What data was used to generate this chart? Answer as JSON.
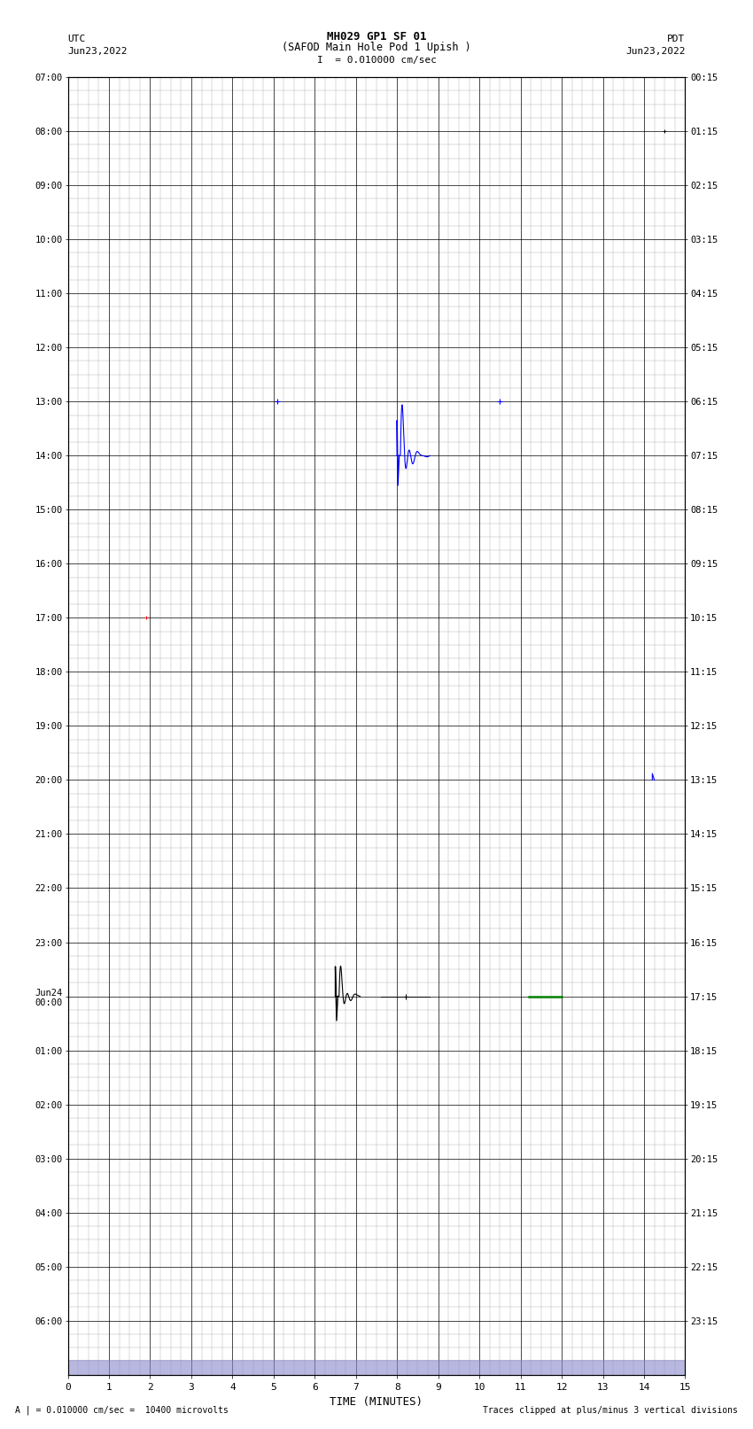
{
  "title_line1": "MH029 GP1 SF 01",
  "title_line2": "(SAFOD Main Hole Pod 1 Upish )",
  "scale_label": "I  = 0.010000 cm/sec",
  "left_label": "UTC",
  "left_date": "Jun23,2022",
  "right_label": "PDT",
  "right_date": "Jun23,2022",
  "xlabel": "TIME (MINUTES)",
  "bottom_left_note": "A | = 0.010000 cm/sec =  10400 microvolts",
  "bottom_right_note": "Traces clipped at plus/minus 3 vertical divisions",
  "left_times": [
    "07:00",
    "08:00",
    "09:00",
    "10:00",
    "11:00",
    "12:00",
    "13:00",
    "14:00",
    "15:00",
    "16:00",
    "17:00",
    "18:00",
    "19:00",
    "20:00",
    "21:00",
    "22:00",
    "23:00",
    "Jun24\n00:00",
    "01:00",
    "02:00",
    "03:00",
    "04:00",
    "05:00",
    "06:00"
  ],
  "right_times": [
    "00:15",
    "01:15",
    "02:15",
    "03:15",
    "04:15",
    "05:15",
    "06:15",
    "07:15",
    "08:15",
    "09:15",
    "10:15",
    "11:15",
    "12:15",
    "13:15",
    "14:15",
    "15:15",
    "16:15",
    "17:15",
    "18:15",
    "19:15",
    "20:15",
    "21:15",
    "22:15",
    "23:15"
  ],
  "num_rows": 24,
  "x_min": 0,
  "x_max": 15,
  "x_major_ticks": [
    0,
    1,
    2,
    3,
    4,
    5,
    6,
    7,
    8,
    9,
    10,
    11,
    12,
    13,
    14,
    15
  ],
  "bg_color": "#ffffff",
  "major_grid_color": "#000000",
  "minor_grid_color": "#aaaaaa",
  "major_grid_lw": 0.5,
  "minor_grid_lw": 0.3
}
